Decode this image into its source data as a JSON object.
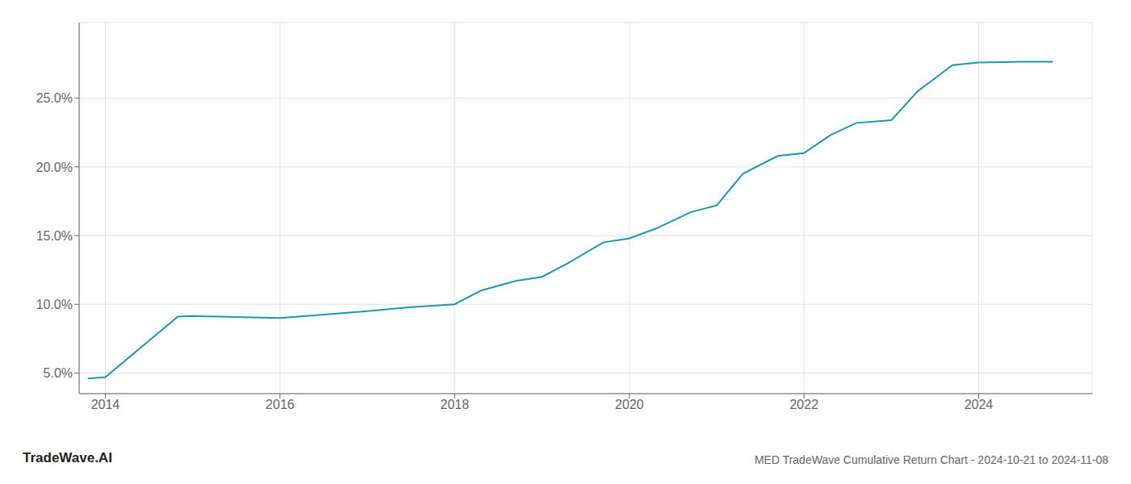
{
  "chart_data": {
    "type": "line",
    "title": "MED TradeWave Cumulative Return Chart - 2024-10-21 to 2024-11-08",
    "annotations": [
      "TradeWave.AI"
    ],
    "x": [
      2013.8,
      2014.0,
      2014.83,
      2015.0,
      2015.3,
      2015.7,
      2016.0,
      2016.5,
      2017.0,
      2017.5,
      2018.0,
      2018.3,
      2018.7,
      2019.0,
      2019.3,
      2019.7,
      2020.0,
      2020.3,
      2020.7,
      2021.0,
      2021.3,
      2021.7,
      2022.0,
      2022.3,
      2022.6,
      2023.0,
      2023.3,
      2023.7,
      2024.0,
      2024.5,
      2024.85
    ],
    "values": [
      4.6,
      4.7,
      9.1,
      9.15,
      9.1,
      9.05,
      9.0,
      9.25,
      9.5,
      9.8,
      10.0,
      11.0,
      11.7,
      12.0,
      13.0,
      14.5,
      14.8,
      15.5,
      16.7,
      17.2,
      19.5,
      20.8,
      21.0,
      22.3,
      23.2,
      23.4,
      25.5,
      27.4,
      27.6,
      27.65,
      27.65
    ],
    "color": "#2196a6",
    "xlim": [
      2013.7,
      2025.3
    ],
    "ylim": [
      3.5,
      30.5
    ],
    "xticks": [
      2014,
      2016,
      2018,
      2020,
      2022,
      2024
    ],
    "yticks": [
      {
        "value": 5.0,
        "label": "5.0%"
      },
      {
        "value": 10.0,
        "label": "10.0%"
      },
      {
        "value": 15.0,
        "label": "15.0%"
      },
      {
        "value": 20.0,
        "label": "20.0%"
      },
      {
        "value": 25.0,
        "label": "25.0%"
      }
    ],
    "grid": true
  }
}
